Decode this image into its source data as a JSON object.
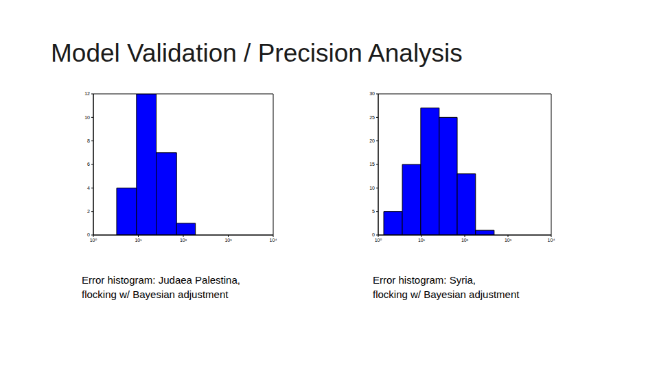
{
  "title": "Model Validation / Precision Analysis",
  "chart_data": [
    {
      "type": "histogram",
      "caption": [
        "Error histogram: Judaea Palestina,",
        "flocking w/ Bayesian adjustment"
      ],
      "bins": [
        3.3,
        9.1,
        25,
        71,
        186
      ],
      "values": [
        4,
        12,
        7,
        1
      ],
      "color": "#0000ff",
      "log": "x",
      "grid": false,
      "xlim": [
        1,
        10000
      ],
      "xticks": [
        {
          "value": 1,
          "label": "10⁰"
        },
        {
          "value": 10,
          "label": "10¹"
        },
        {
          "value": 100,
          "label": "10²"
        },
        {
          "value": 1000,
          "label": "10³"
        },
        {
          "value": 10000,
          "label": "10⁴"
        }
      ],
      "ylim": [
        0,
        12
      ],
      "yticks": [
        0,
        2,
        4,
        6,
        8,
        10,
        12
      ]
    },
    {
      "type": "histogram",
      "caption": [
        "Error histogram: Syria,",
        "flocking w/ Bayesian adjustment"
      ],
      "bins": [
        1.34,
        3.6,
        9.6,
        25.7,
        67,
        178,
        479
      ],
      "values": [
        5,
        15,
        27,
        25,
        13,
        1
      ],
      "color": "#0000ff",
      "log": "x",
      "grid": false,
      "xlim": [
        1,
        10000
      ],
      "xticks": [
        {
          "value": 1,
          "label": "10⁰"
        },
        {
          "value": 10,
          "label": "10¹"
        },
        {
          "value": 100,
          "label": "10²"
        },
        {
          "value": 1000,
          "label": "10³"
        },
        {
          "value": 10000,
          "label": "10⁴"
        }
      ],
      "ylim": [
        0,
        30
      ],
      "yticks": [
        0,
        5,
        10,
        15,
        20,
        25,
        30
      ]
    }
  ]
}
